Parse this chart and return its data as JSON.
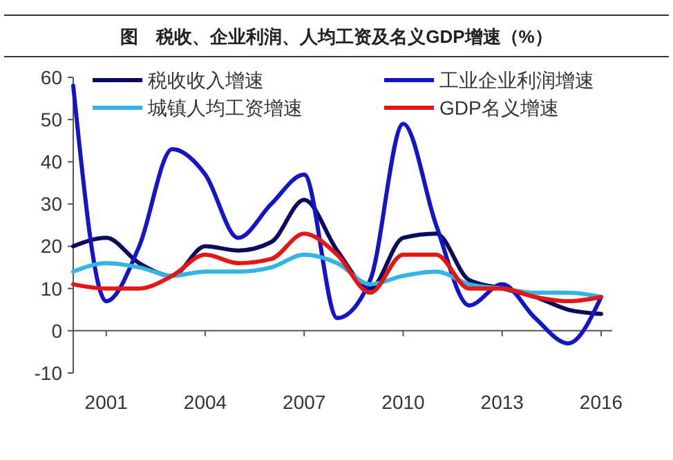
{
  "chart_data": {
    "type": "line",
    "title": "图　税收、企业利润、人均工资及名义GDP增速（%）",
    "x": [
      2000,
      2001,
      2002,
      2003,
      2004,
      2005,
      2006,
      2007,
      2008,
      2009,
      2010,
      2011,
      2012,
      2013,
      2014,
      2015,
      2016
    ],
    "xlim": [
      2000,
      2016
    ],
    "xticks": [
      2001,
      2004,
      2007,
      2010,
      2013,
      2016
    ],
    "ylim": [
      -10,
      60
    ],
    "yticks": [
      -10,
      0,
      10,
      20,
      30,
      40,
      50,
      60
    ],
    "series": [
      {
        "name": "税收收入增速",
        "color": "#0a0a5e",
        "values": [
          20,
          22,
          16,
          13,
          20,
          19,
          21,
          31,
          19,
          10,
          22,
          23,
          12,
          10,
          8,
          5,
          4
        ]
      },
      {
        "name": "工业企业利润增速",
        "color": "#1515c8",
        "values": [
          58,
          7,
          20,
          43,
          37,
          22,
          30,
          37,
          3,
          12,
          49,
          25,
          6,
          11,
          3,
          -3,
          8
        ]
      },
      {
        "name": "城镇人均工资增速",
        "color": "#33b5e0",
        "values": [
          14,
          16,
          15,
          13,
          14,
          14,
          15,
          18,
          16,
          11,
          13,
          14,
          11,
          10,
          9,
          9,
          8
        ]
      },
      {
        "name": "GDP名义增速",
        "color": "#e81515",
        "values": [
          11,
          10,
          10,
          13,
          18,
          16,
          17,
          23,
          18,
          9,
          18,
          18,
          10,
          10,
          8,
          7,
          8
        ]
      }
    ],
    "legend": "top",
    "marker": "none",
    "line_style": "solid"
  }
}
